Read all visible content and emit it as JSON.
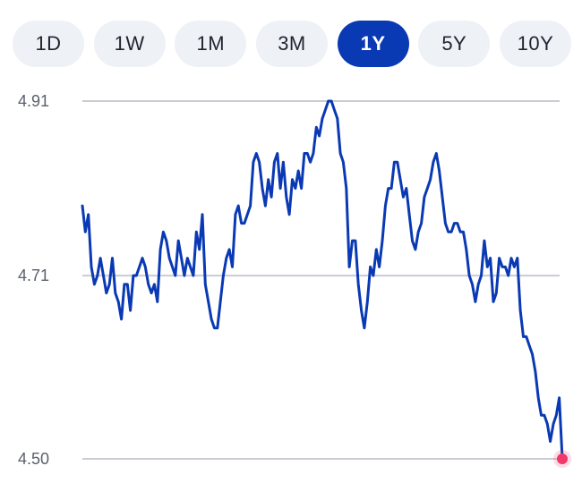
{
  "range_tabs": [
    {
      "label": "1D",
      "active": false
    },
    {
      "label": "1W",
      "active": false
    },
    {
      "label": "1M",
      "active": false
    },
    {
      "label": "3M",
      "active": false
    },
    {
      "label": "1Y",
      "active": true
    },
    {
      "label": "5Y",
      "active": false
    },
    {
      "label": "10Y",
      "active": false
    }
  ],
  "colors": {
    "line": "#0a39b4",
    "active_tab": "#0a39b4",
    "gridline": "#c9ccd2",
    "end_marker": "#f0386b"
  },
  "chart_data": {
    "type": "line",
    "title": "",
    "xlabel": "",
    "ylabel": "",
    "ylim": [
      4.5,
      4.91
    ],
    "yticks": [
      {
        "value": 4.91,
        "label": "4.91"
      },
      {
        "value": 4.71,
        "label": "4.71"
      },
      {
        "value": 4.5,
        "label": "4.50"
      }
    ],
    "grid": true,
    "series": [
      {
        "values": [
          4.79,
          4.76,
          4.78,
          4.72,
          4.7,
          4.71,
          4.73,
          4.71,
          4.69,
          4.7,
          4.73,
          4.69,
          4.68,
          4.66,
          4.7,
          4.7,
          4.67,
          4.71,
          4.71,
          4.72,
          4.73,
          4.72,
          4.7,
          4.69,
          4.7,
          4.68,
          4.74,
          4.76,
          4.75,
          4.73,
          4.72,
          4.71,
          4.75,
          4.73,
          4.71,
          4.73,
          4.72,
          4.71,
          4.76,
          4.74,
          4.78,
          4.7,
          4.68,
          4.66,
          4.65,
          4.65,
          4.68,
          4.71,
          4.73,
          4.74,
          4.72,
          4.78,
          4.79,
          4.77,
          4.77,
          4.78,
          4.79,
          4.84,
          4.85,
          4.84,
          4.81,
          4.79,
          4.82,
          4.8,
          4.84,
          4.85,
          4.81,
          4.84,
          4.8,
          4.78,
          4.82,
          4.81,
          4.83,
          4.81,
          4.85,
          4.85,
          4.84,
          4.85,
          4.88,
          4.87,
          4.89,
          4.9,
          4.91,
          4.91,
          4.9,
          4.89,
          4.85,
          4.84,
          4.81,
          4.72,
          4.75,
          4.75,
          4.7,
          4.67,
          4.65,
          4.68,
          4.72,
          4.71,
          4.74,
          4.72,
          4.75,
          4.79,
          4.81,
          4.81,
          4.84,
          4.84,
          4.82,
          4.8,
          4.81,
          4.78,
          4.75,
          4.74,
          4.76,
          4.77,
          4.8,
          4.81,
          4.82,
          4.84,
          4.85,
          4.83,
          4.8,
          4.77,
          4.76,
          4.76,
          4.77,
          4.77,
          4.76,
          4.76,
          4.74,
          4.71,
          4.7,
          4.68,
          4.7,
          4.71,
          4.75,
          4.72,
          4.73,
          4.68,
          4.69,
          4.73,
          4.72,
          4.72,
          4.71,
          4.73,
          4.72,
          4.73,
          4.67,
          4.64,
          4.64,
          4.63,
          4.62,
          4.6,
          4.57,
          4.55,
          4.55,
          4.54,
          4.52,
          4.54,
          4.55,
          4.57,
          4.5
        ]
      }
    ],
    "end_marker": true
  }
}
